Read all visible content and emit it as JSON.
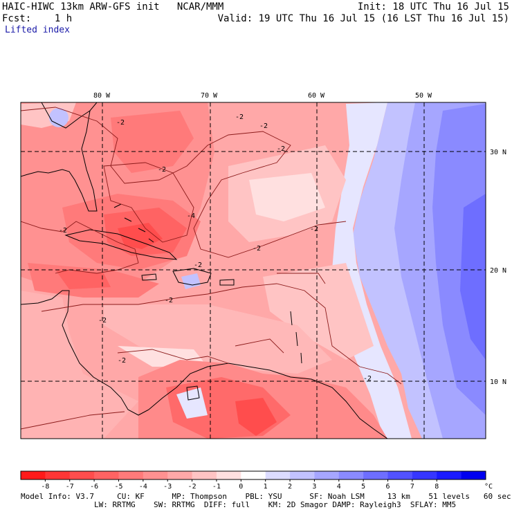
{
  "header": {
    "title_left": "HAIC-HIWC 13km ARW-GFS init   NCAR/MMM",
    "init": "Init: 18 UTC Thu 16 Jul 15",
    "fcst": "Fcst:    1 h",
    "valid": "Valid: 19 UTC Thu 16 Jul 15 (16 LST Thu 16 Jul 15)",
    "field": "Lifted index"
  },
  "map": {
    "lon_labels": [
      "80 W",
      "70 W",
      "60 W",
      "50 W"
    ],
    "lat_labels": [
      "30 N",
      "20 N",
      "10 N"
    ],
    "contour_label": "-2",
    "contour_label_4": "-4"
  },
  "colorbar": {
    "ticks": [
      "-8",
      "-7",
      "-6",
      "-5",
      "-4",
      "-3",
      "-2",
      "-1",
      "0",
      "1",
      "2",
      "3",
      "4",
      "5",
      "6",
      "7",
      "8"
    ],
    "unit": "°C",
    "colors": [
      "#ff1a1a",
      "#ff3636",
      "#ff4d4d",
      "#ff6363",
      "#ff7a7a",
      "#ff9191",
      "#ffa8a8",
      "#ffc4c4",
      "#ffe0e0",
      "#ffffff",
      "#dcdcff",
      "#c2c2ff",
      "#a6a6ff",
      "#8a8aff",
      "#6e6eff",
      "#5252ff",
      "#3636ff",
      "#1a1aff",
      "#0000f0"
    ]
  },
  "model_info": {
    "line1": "Model Info: V3.7     CU: KF      MP: Thompson    PBL: YSU      SF: Noah LSM     13 km    51 levels   60 sec",
    "line2": "                LW: RRTMG    SW: RRTMG  DIFF: full    KM: 2D Smagor DAMP: Rayleigh3  SFLAY: MM5"
  }
}
